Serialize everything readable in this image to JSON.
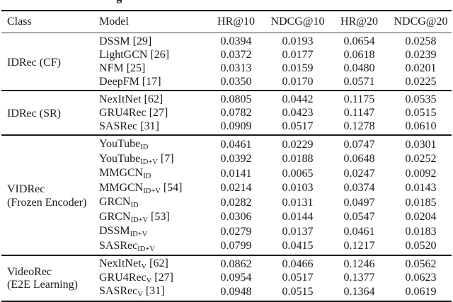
{
  "page": {
    "background": "#ffffff",
    "text_color": "#1b1b1b",
    "rule_color": "#151515",
    "caption_fragment": "g"
  },
  "table": {
    "columns": [
      "Class",
      "Model",
      "HR@10",
      "NDCG@10",
      "HR@20",
      "NDCG@20"
    ],
    "groups": [
      {
        "class_label": [
          "IDRec (CF)"
        ],
        "rows": [
          {
            "model": "DSSM",
            "sub": "",
            "ref": "[29]",
            "values": [
              "0.0394",
              "0.0193",
              "0.0654",
              "0.0258"
            ]
          },
          {
            "model": "LightGCN",
            "sub": "",
            "ref": "[26]",
            "values": [
              "0.0372",
              "0.0177",
              "0.0618",
              "0.0239"
            ]
          },
          {
            "model": "NFM",
            "sub": "",
            "ref": "[25]",
            "values": [
              "0.0313",
              "0.0159",
              "0.0480",
              "0.0201"
            ]
          },
          {
            "model": "DeepFM",
            "sub": "",
            "ref": "[17]",
            "values": [
              "0.0350",
              "0.0170",
              "0.0571",
              "0.0225"
            ]
          }
        ]
      },
      {
        "class_label": [
          "IDRec (SR)"
        ],
        "rows": [
          {
            "model": "NexItNet",
            "sub": "",
            "ref": "[62]",
            "values": [
              "0.0805",
              "0.0442",
              "0.1175",
              "0.0535"
            ]
          },
          {
            "model": "GRU4Rec",
            "sub": "",
            "ref": "[27]",
            "values": [
              "0.0782",
              "0.0423",
              "0.1147",
              "0.0515"
            ]
          },
          {
            "model": "SASRec",
            "sub": "",
            "ref": "[31]",
            "values": [
              "0.0909",
              "0.0517",
              "0.1278",
              "0.0610"
            ]
          }
        ]
      },
      {
        "class_label": [
          "VIDRec",
          "(Frozen Encoder)"
        ],
        "rows": [
          {
            "model": "YouTube",
            "sub": "ID",
            "ref": "",
            "values": [
              "0.0461",
              "0.0229",
              "0.0747",
              "0.0301"
            ]
          },
          {
            "model": "YouTube",
            "sub": "ID+V",
            "ref": "[7]",
            "values": [
              "0.0392",
              "0.0188",
              "0.0648",
              "0.0252"
            ]
          },
          {
            "model": "MMGCN",
            "sub": "ID",
            "ref": "",
            "values": [
              "0.0141",
              "0.0065",
              "0.0247",
              "0.0092"
            ]
          },
          {
            "model": "MMGCN",
            "sub": "ID+V",
            "ref": "[54]",
            "values": [
              "0.0214",
              "0.0103",
              "0.0374",
              "0.0143"
            ]
          },
          {
            "model": "GRCN",
            "sub": "ID",
            "ref": "",
            "values": [
              "0.0282",
              "0.0131",
              "0.0497",
              "0.0185"
            ]
          },
          {
            "model": "GRCN",
            "sub": "ID+V",
            "ref": "[53]",
            "values": [
              "0.0306",
              "0.0144",
              "0.0547",
              "0.0204"
            ]
          },
          {
            "model": "DSSM",
            "sub": "ID+V",
            "ref": "",
            "values": [
              "0.0279",
              "0.0137",
              "0.0461",
              "0.0183"
            ]
          },
          {
            "model": "SASRec",
            "sub": "ID+V",
            "ref": "",
            "values": [
              "0.0799",
              "0.0415",
              "0.1217",
              "0.0520"
            ]
          }
        ]
      },
      {
        "class_label": [
          "VideoRec",
          "(E2E Learning)"
        ],
        "rows": [
          {
            "model": "NexItNet",
            "sub": "V",
            "ref": "[62]",
            "values": [
              "0.0862",
              "0.0466",
              "0.1246",
              "0.0562"
            ]
          },
          {
            "model": "GRU4Rec",
            "sub": "V",
            "ref": "[27]",
            "values": [
              "0.0954",
              "0.0517",
              "0.1377",
              "0.0623"
            ]
          },
          {
            "model": "SASRec",
            "sub": "V",
            "ref": "[31]",
            "values": [
              "0.0948",
              "0.0515",
              "0.1364",
              "0.0619"
            ]
          }
        ]
      }
    ]
  }
}
